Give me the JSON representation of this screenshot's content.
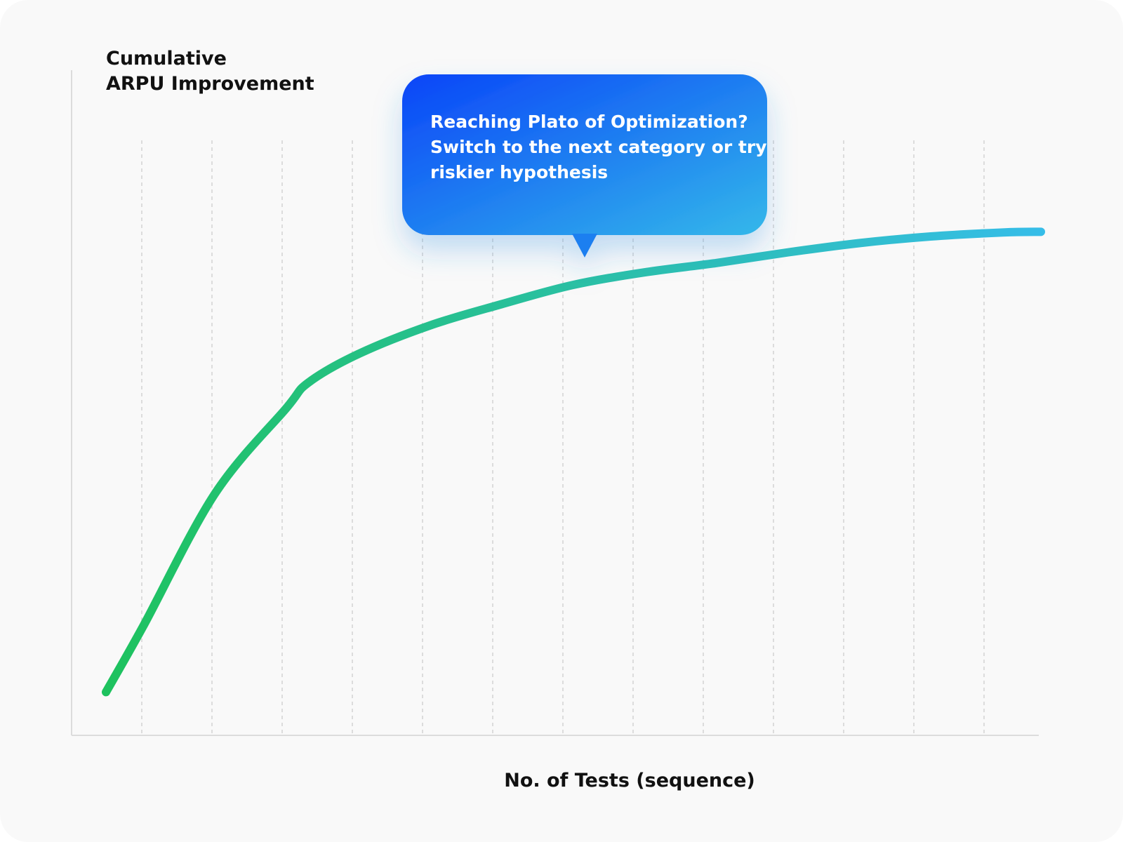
{
  "chart_data": {
    "type": "line",
    "ylabel": [
      "Cumulative",
      "ARPU Improvement"
    ],
    "xlabel": "No. of Tests (sequence)",
    "annotation": [
      "Reaching Plato of Optimization?",
      "Switch to the next category or try",
      "riskier hypothesis"
    ],
    "x": [
      0.49,
      1.02,
      2.04,
      3.06,
      3.37,
      4.08,
      5.1,
      6.12,
      7.14,
      8.16,
      9.18,
      10.2,
      11.22,
      12.24,
      13.27,
      13.81
    ],
    "values": [
      6.5,
      16.4,
      36.3,
      49.2,
      53,
      57.3,
      61.6,
      64.8,
      67.7,
      69.6,
      71,
      72.6,
      74,
      75,
      75.6,
      75.7
    ],
    "color": [
      "#1ec25e",
      "#36bde8"
    ],
    "xlim": [
      0,
      13.78
    ],
    "ylim": [
      0,
      100
    ],
    "xticks": [
      1,
      2,
      3,
      4,
      5,
      6,
      7,
      8,
      9,
      10,
      11,
      12,
      13
    ],
    "grid": true
  }
}
